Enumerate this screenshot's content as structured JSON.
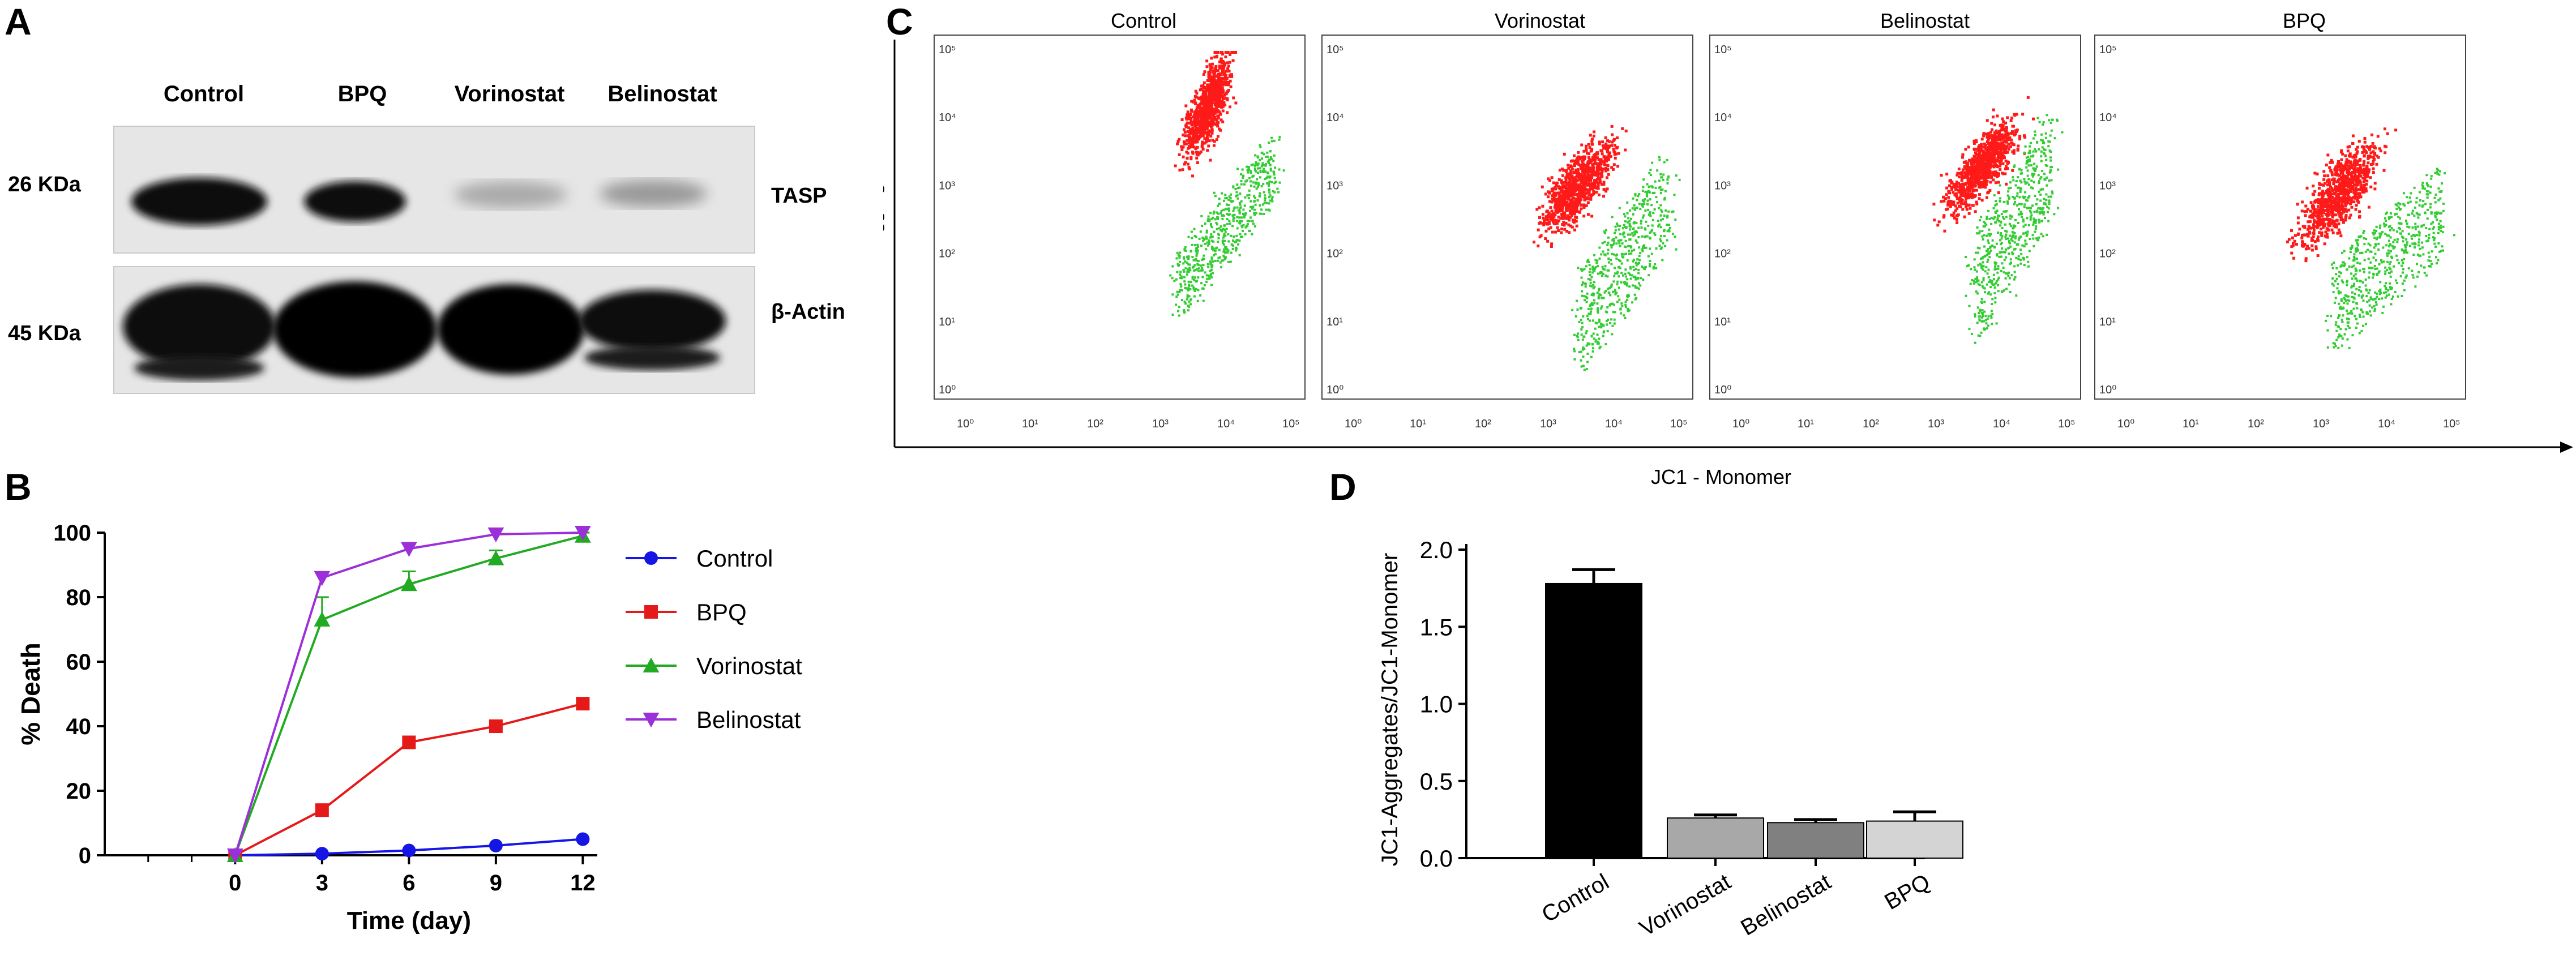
{
  "panels": {
    "a": "A",
    "b": "B",
    "c": "C",
    "d": "D"
  },
  "western_blot": {
    "columns": [
      "Control",
      "BPQ",
      "Vorinostat",
      "Belinostat"
    ],
    "rows": [
      {
        "weight": "26 KDa",
        "protein": "TASP"
      },
      {
        "weight": "45 KDa",
        "protein": "β-Actin"
      }
    ]
  },
  "flow": {
    "panels": [
      "Control",
      "Vorinostat",
      "Belinostat",
      "BPQ"
    ],
    "ylabel": "JC1 - Aggregate",
    "xlabel": "JC1 - Monomer",
    "y_ticks": [
      "10⁵",
      "10⁴",
      "10³",
      "10²",
      "10¹",
      "10⁰"
    ],
    "x_ticks": [
      "10⁰",
      "10¹",
      "10²",
      "10³",
      "10⁴",
      "10⁵"
    ],
    "colors": {
      "aggregate": "#ff1a1a",
      "monomer": "#33cc33"
    }
  },
  "chart_data": [
    {
      "type": "line",
      "title": "",
      "xlabel": "Time (day)",
      "ylabel": "% Death",
      "x": [
        0,
        3,
        6,
        9,
        12
      ],
      "x_ticks": [
        "0",
        "3",
        "6",
        "9",
        "12"
      ],
      "y_ticks": [
        "0",
        "20",
        "40",
        "60",
        "80",
        "100"
      ],
      "xlim": [
        -4.5,
        12.5
      ],
      "ylim": [
        0,
        100
      ],
      "series": [
        {
          "name": "Control",
          "values": [
            0,
            0.5,
            1.5,
            3,
            5
          ],
          "color": "#1515e6",
          "marker": "circle"
        },
        {
          "name": "BPQ",
          "values": [
            0,
            14,
            35,
            40,
            47
          ],
          "color": "#e61919",
          "marker": "square"
        },
        {
          "name": "Vorinostat",
          "values": [
            0,
            73,
            84,
            92,
            99
          ],
          "errors": [
            0,
            7,
            4,
            2.5,
            1
          ],
          "color": "#22aa22",
          "marker": "triangle-up"
        },
        {
          "name": "Belinostat",
          "values": [
            0,
            86,
            95,
            99.5,
            100
          ],
          "color": "#9b30d9",
          "marker": "triangle-down"
        }
      ],
      "legend": "right"
    },
    {
      "type": "bar",
      "title": "",
      "xlabel": "",
      "ylabel": "JC1-Aggregates/JC1-Monomer",
      "categories": [
        "Control",
        "Vorinostat",
        "Belinostat",
        "BPQ"
      ],
      "values": [
        1.78,
        0.26,
        0.23,
        0.24
      ],
      "errors": [
        0.09,
        0.02,
        0.02,
        0.06
      ],
      "colors": [
        "#000000",
        "#a8a8a8",
        "#808080",
        "#d4d4d4"
      ],
      "y_ticks": [
        "0.0",
        "0.5",
        "1.0",
        "1.5",
        "2.0"
      ],
      "ylim": [
        0,
        2.0
      ]
    }
  ]
}
